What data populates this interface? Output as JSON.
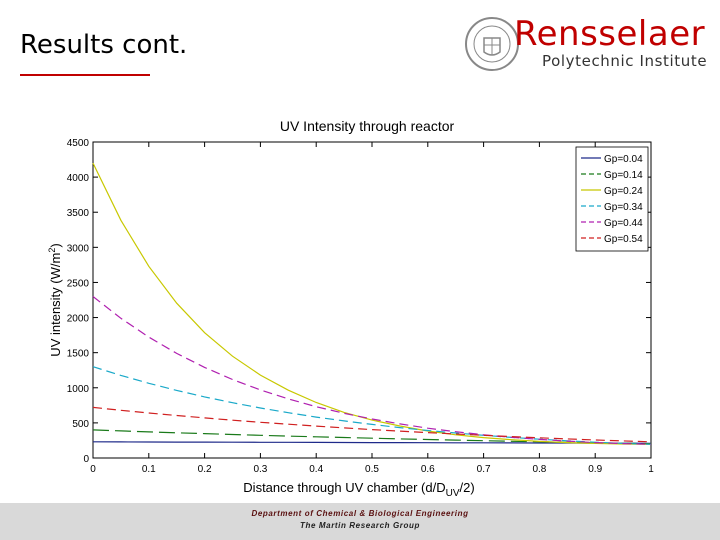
{
  "slide": {
    "title": "Results cont."
  },
  "logo": {
    "wordmark": "Rensselaer",
    "subtitle": "Polytechnic Institute",
    "seal_text": "RENSSELAER POLYTECHNIC INSTITUTE"
  },
  "footer": {
    "department": "Department of Chemical & Biological Engineering",
    "group": "The Martin Research Group"
  },
  "colors": {
    "accent": "#c00000"
  },
  "chart_data": {
    "type": "line",
    "title": "UV Intensity through reactor",
    "xlabel": "Distance through UV chamber (d/D",
    "xlabel_subscript": "UV",
    "xlabel_suffix": "/2)",
    "ylabel": "UV intensity (W/m",
    "ylabel_superscript": "2",
    "ylabel_suffix": ")",
    "xlim": [
      0,
      1
    ],
    "ylim": [
      0,
      4500
    ],
    "x_ticks": [
      "0",
      "0.1",
      "0.2",
      "0.3",
      "0.4",
      "0.5",
      "0.6",
      "0.7",
      "0.8",
      "0.9",
      "1"
    ],
    "y_ticks": [
      "0",
      "500",
      "1000",
      "1500",
      "2000",
      "2500",
      "3000",
      "3500",
      "4000",
      "4500"
    ],
    "grid": false,
    "legend_position": "top-right",
    "x": [
      0,
      0.05,
      0.1,
      0.15,
      0.2,
      0.25,
      0.3,
      0.35,
      0.4,
      0.45,
      0.5,
      0.55,
      0.6,
      0.65,
      0.7,
      0.75,
      0.8,
      0.85,
      0.9,
      0.95,
      1
    ],
    "series": [
      {
        "name": "Gp=0.04",
        "color": "#1f2a8a",
        "dash": "solid",
        "values": [
          230,
          229,
          228,
          227,
          226,
          225,
          224,
          223,
          222,
          221,
          220,
          219,
          218,
          217,
          216,
          215,
          214,
          213,
          212,
          211,
          210
        ]
      },
      {
        "name": "Gp=0.14",
        "color": "#1a7a1a",
        "dash": "long",
        "values": [
          400,
          386,
          372,
          359,
          347,
          335,
          323,
          312,
          302,
          292,
          282,
          272,
          263,
          255,
          246,
          238,
          231,
          223,
          216,
          209,
          203
        ]
      },
      {
        "name": "Gp=0.24",
        "color": "#c8c800",
        "dash": "solid",
        "values": [
          4200,
          3385,
          2730,
          2205,
          1785,
          1450,
          1180,
          965,
          790,
          650,
          540,
          455,
          385,
          330,
          290,
          260,
          237,
          220,
          208,
          200,
          195
        ]
      },
      {
        "name": "Gp=0.34",
        "color": "#1aa9c9",
        "dash": "dashed",
        "values": [
          1300,
          1176,
          1064,
          962,
          870,
          787,
          712,
          645,
          583,
          528,
          478,
          433,
          392,
          356,
          323,
          294,
          268,
          245,
          225,
          208,
          195
        ]
      },
      {
        "name": "Gp=0.44",
        "color": "#b020b0",
        "dash": "dashed",
        "values": [
          2300,
          1990,
          1722,
          1490,
          1290,
          1118,
          970,
          842,
          731,
          636,
          555,
          485,
          425,
          374,
          331,
          295,
          265,
          240,
          220,
          205,
          195
        ]
      },
      {
        "name": "Gp=0.54",
        "color": "#d02020",
        "dash": "dashed",
        "values": [
          720,
          679,
          641,
          605,
          571,
          539,
          509,
          481,
          454,
          429,
          405,
          383,
          362,
          342,
          323,
          305,
          288,
          272,
          257,
          243,
          230
        ]
      }
    ]
  }
}
